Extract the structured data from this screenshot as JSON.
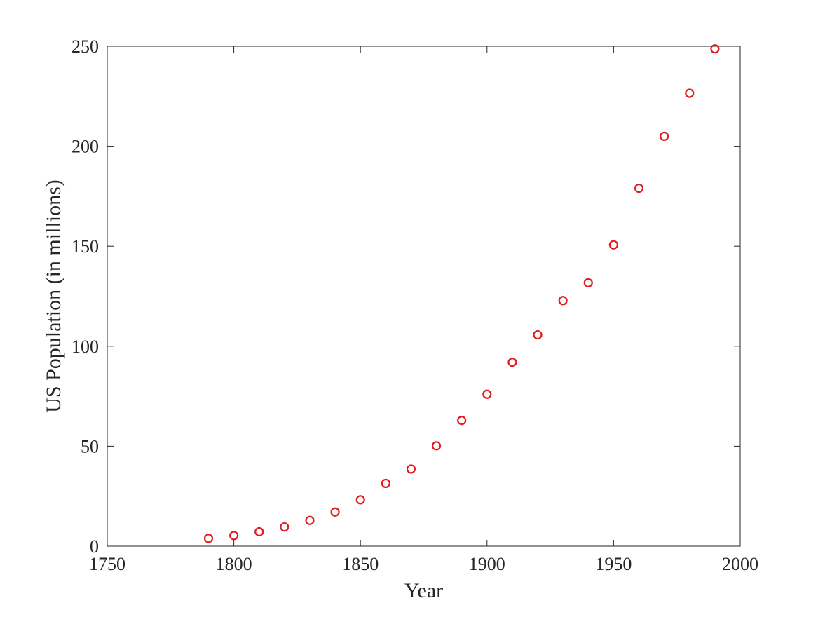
{
  "chart_data": {
    "type": "scatter",
    "title": "",
    "xlabel": "Year",
    "ylabel": "US Population (in millions)",
    "xlim": [
      1750,
      2000
    ],
    "ylim": [
      0,
      250
    ],
    "xticks": [
      1750,
      1800,
      1850,
      1900,
      1950,
      2000
    ],
    "yticks": [
      0,
      50,
      100,
      150,
      200,
      250
    ],
    "xtick_labels": [
      "1750",
      "1800",
      "1850",
      "1900",
      "1950",
      "2000"
    ],
    "ytick_labels": [
      "0",
      "50",
      "100",
      "150",
      "200",
      "250"
    ],
    "grid": false,
    "legend": "none",
    "marker": "open-circle",
    "colors": {
      "marker": "#e31a1c",
      "axis": "#262626",
      "background": "#ffffff"
    },
    "series": [
      {
        "x": [
          1790,
          1800,
          1810,
          1820,
          1830,
          1840,
          1850,
          1860,
          1870,
          1880,
          1890,
          1900,
          1910,
          1920,
          1930,
          1940,
          1950,
          1960,
          1970,
          1980,
          1990
        ],
        "y": [
          3.9,
          5.3,
          7.2,
          9.6,
          12.9,
          17.1,
          23.2,
          31.4,
          38.6,
          50.2,
          62.9,
          76.0,
          92.0,
          105.7,
          122.8,
          131.7,
          150.7,
          179.0,
          205.0,
          226.5,
          248.7
        ]
      }
    ]
  }
}
